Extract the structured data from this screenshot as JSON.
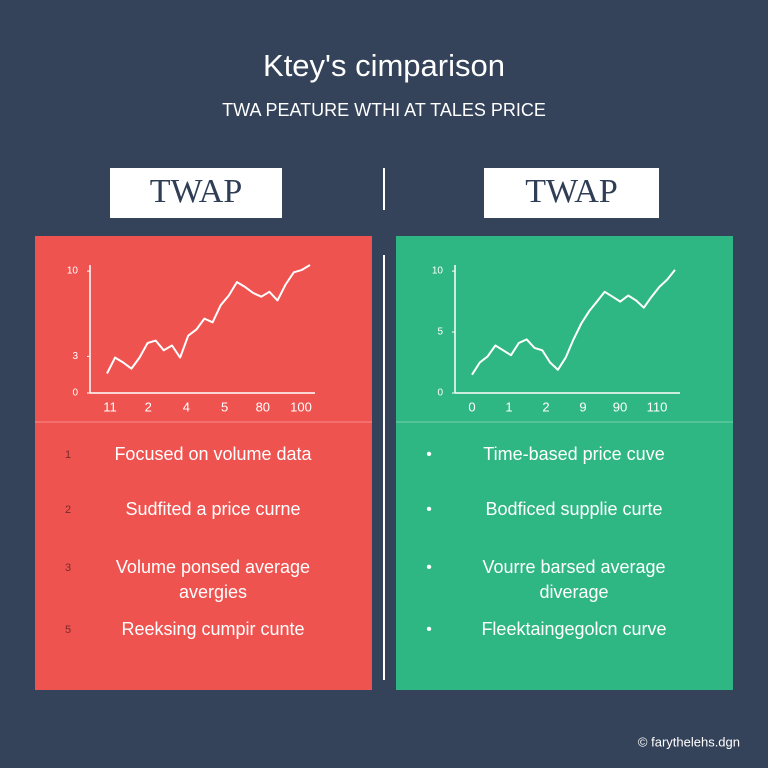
{
  "header": {
    "title": "Ktey's cimparison",
    "subtitle": "TWA PEATURE WTHI AT TALES PRICE"
  },
  "panels": [
    {
      "heading": "TWAP",
      "color": "#ef5350",
      "items": [
        {
          "marker": "1",
          "lines": [
            "Focused on volume data"
          ]
        },
        {
          "marker": "2",
          "lines": [
            "Sudfited a price curne"
          ]
        },
        {
          "marker": "3",
          "lines": [
            "Volume ponsed average",
            "avergies"
          ]
        },
        {
          "marker": "5",
          "lines": [
            "Reeksing cumpir cunte"
          ]
        }
      ]
    },
    {
      "heading": "TWAP",
      "color": "#2fb783",
      "items": [
        {
          "marker": "•",
          "lines": [
            "Time-based price cuve"
          ]
        },
        {
          "marker": "•",
          "lines": [
            "Bodficed supplie curte"
          ]
        },
        {
          "marker": "•",
          "lines": [
            "Vourre barsed average",
            "diverage"
          ]
        },
        {
          "marker": "•",
          "lines": [
            "Fleektaingegolcn curve"
          ]
        }
      ]
    }
  ],
  "chart_data": [
    {
      "type": "line",
      "color": "#ffffff",
      "ylim": [
        0,
        10.5
      ],
      "yticks": [
        0,
        3,
        10
      ],
      "x_labels": [
        "11",
        "2",
        "4",
        "5",
        "80",
        "100"
      ],
      "values": [
        1.6,
        2.9,
        2.5,
        2.0,
        2.9,
        4.1,
        4.3,
        3.5,
        3.9,
        2.9,
        4.7,
        5.2,
        6.1,
        5.8,
        7.2,
        8.0,
        9.1,
        8.7,
        8.2,
        7.9,
        8.3,
        7.6,
        8.9,
        9.9,
        10.1,
        10.5
      ]
    },
    {
      "type": "line",
      "color": "#ffffff",
      "ylim": [
        0,
        10.5
      ],
      "yticks": [
        0,
        5,
        10
      ],
      "x_labels": [
        "0",
        "1",
        "2",
        "9",
        "90",
        "110"
      ],
      "values": [
        1.5,
        2.5,
        3.0,
        3.9,
        3.5,
        3.1,
        4.1,
        4.4,
        3.7,
        3.5,
        2.5,
        1.9,
        2.9,
        4.4,
        5.7,
        6.7,
        7.5,
        8.3,
        7.9,
        7.5,
        8.0,
        7.6,
        7.0,
        7.9,
        8.7,
        9.3,
        10.1
      ]
    }
  ],
  "footer": "© farythelehs.dgn"
}
